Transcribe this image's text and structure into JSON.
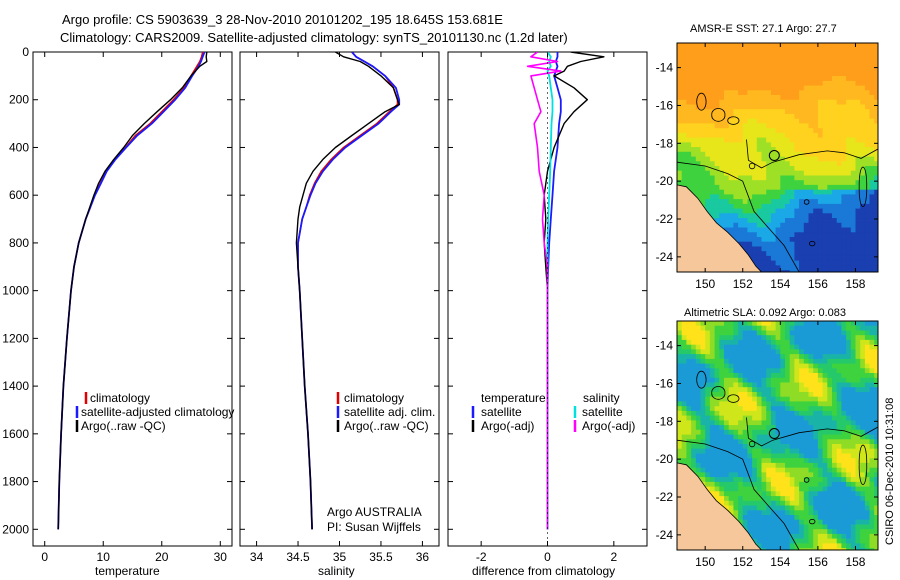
{
  "header": {
    "line1": "Argo profile: CS 5903639_3 28-Nov-2010 20101202_195 18.645S 153.681E",
    "line2": "Climatology: CARS2009. Satellite-adjusted climatology: synTS_20101130.nc (1.2d later)"
  },
  "colors": {
    "climatology": "#e00000",
    "satellite": "#1a1aff",
    "argo": "#000000",
    "sal_satellite": "#00e0e0",
    "sal_argo": "#ff00ff",
    "land": "#f6c79a"
  },
  "chart_data": [
    {
      "type": "line",
      "id": "temperature",
      "xlabel": "temperature",
      "ylabel": "",
      "xlim": [
        -2,
        32
      ],
      "ylim": [
        2070,
        0
      ],
      "xticks": [
        0,
        10,
        20,
        30
      ],
      "yticks": [
        0,
        200,
        400,
        600,
        800,
        1000,
        1200,
        1400,
        1600,
        1800,
        2000
      ],
      "legend": [
        "climatology",
        "satellite-adjusted climatology",
        "Argo(..raw -QC)"
      ],
      "depth": [
        0,
        20,
        40,
        60,
        100,
        150,
        200,
        250,
        300,
        350,
        400,
        450,
        500,
        550,
        600,
        650,
        700,
        800,
        900,
        1000,
        1200,
        1400,
        1600,
        1800,
        2000
      ],
      "series": [
        {
          "name": "climatology",
          "values": [
            27.0,
            26.8,
            26.5,
            26.0,
            25.0,
            23.8,
            22.0,
            20.0,
            18.0,
            15.5,
            13.8,
            12.0,
            10.5,
            9.5,
            8.5,
            7.8,
            7.0,
            5.8,
            5.0,
            4.5,
            3.8,
            3.2,
            2.8,
            2.5,
            2.3
          ]
        },
        {
          "name": "satellite-adjusted climatology",
          "values": [
            27.3,
            27.0,
            26.7,
            26.3,
            25.2,
            24.0,
            22.3,
            20.3,
            18.3,
            15.8,
            13.9,
            12.1,
            10.6,
            9.6,
            8.6,
            7.8,
            7.0,
            5.8,
            5.0,
            4.5,
            3.8,
            3.2,
            2.8,
            2.5,
            2.3
          ]
        },
        {
          "name": "Argo(..raw -QC)",
          "values": [
            27.7,
            27.6,
            27.7,
            26.5,
            25.0,
            23.5,
            21.5,
            19.2,
            17.0,
            15.0,
            13.5,
            11.8,
            10.3,
            9.2,
            8.4,
            7.7,
            7.0,
            5.8,
            5.0,
            4.5,
            3.8,
            3.2,
            2.8,
            2.5,
            2.3
          ]
        }
      ]
    },
    {
      "type": "line",
      "id": "salinity",
      "xlabel": "salinity",
      "ylabel": "",
      "xlim": [
        33.8,
        36.2
      ],
      "ylim": [
        2070,
        0
      ],
      "xticks": [
        34,
        34.5,
        35,
        35.5,
        36
      ],
      "legend": [
        "climatology",
        "satellite adj. clim.",
        "Argo(..raw -QC)"
      ],
      "annotation": [
        "Argo AUSTRALIA",
        "PI: Susan Wijffels"
      ],
      "depth": [
        0,
        20,
        40,
        60,
        100,
        150,
        200,
        220,
        250,
        300,
        350,
        400,
        450,
        500,
        550,
        600,
        650,
        700,
        800,
        900,
        1000,
        1200,
        1400,
        1600,
        1800,
        2000
      ],
      "series": [
        {
          "name": "climatology",
          "values": [
            35.15,
            35.2,
            35.3,
            35.4,
            35.55,
            35.65,
            35.7,
            35.7,
            35.6,
            35.45,
            35.25,
            35.05,
            34.9,
            34.78,
            34.7,
            34.64,
            34.6,
            34.55,
            34.5,
            34.5,
            34.52,
            34.55,
            34.58,
            34.62,
            34.65,
            34.67
          ]
        },
        {
          "name": "satellite adj. clim.",
          "values": [
            35.15,
            35.2,
            35.3,
            35.4,
            35.55,
            35.68,
            35.72,
            35.72,
            35.62,
            35.47,
            35.27,
            35.07,
            34.92,
            34.8,
            34.71,
            34.65,
            34.6,
            34.55,
            34.5,
            34.5,
            34.52,
            34.55,
            34.58,
            34.62,
            34.65,
            34.67
          ]
        },
        {
          "name": "Argo(..raw -QC)",
          "values": [
            34.95,
            35.05,
            35.25,
            35.35,
            35.5,
            35.65,
            35.7,
            35.72,
            35.55,
            35.35,
            35.15,
            34.95,
            34.8,
            34.68,
            34.6,
            34.56,
            34.52,
            34.5,
            34.48,
            34.5,
            34.52,
            34.55,
            34.58,
            34.62,
            34.65,
            34.67
          ]
        }
      ]
    },
    {
      "type": "line",
      "id": "difference",
      "xlabel": "difference from climatology",
      "ylabel": "",
      "xlim": [
        -3,
        3
      ],
      "ylim": [
        2070,
        0
      ],
      "xticks": [
        -2,
        0,
        2
      ],
      "legend_temperature": [
        "temperature",
        "satellite",
        "Argo(-adj)"
      ],
      "legend_salinity": [
        "salinity",
        "satellite",
        "Argo(-adj)"
      ],
      "depth": [
        0,
        20,
        40,
        60,
        80,
        100,
        150,
        200,
        250,
        300,
        400,
        500,
        600,
        700,
        800,
        900,
        1000,
        1200,
        1400,
        1600,
        1800,
        2000
      ],
      "series": [
        {
          "name": "temperature satellite",
          "values": [
            0.3,
            0.3,
            0.25,
            0.3,
            0.25,
            0.2,
            0.3,
            0.4,
            0.4,
            0.35,
            0.3,
            0.2,
            0.15,
            0.1,
            0.05,
            0.02,
            0.0,
            0.0,
            0.0,
            0.0,
            0.0,
            0.0
          ]
        },
        {
          "name": "temperature Argo(-adj)",
          "values": [
            0.7,
            1.7,
            1.0,
            0.6,
            0.5,
            0.2,
            0.8,
            1.2,
            0.8,
            0.5,
            0.2,
            0.0,
            -0.1,
            -0.05,
            -0.1,
            -0.05,
            0.0,
            0.0,
            0.0,
            0.0,
            0.0,
            0.0
          ]
        },
        {
          "name": "salinity satellite",
          "values": [
            0.0,
            0.1,
            0.05,
            0.1,
            0.0,
            0.05,
            0.1,
            0.15,
            0.15,
            0.12,
            0.1,
            0.08,
            0.05,
            0.02,
            0.0,
            0.0,
            0.0,
            0.0,
            0.0,
            0.0,
            0.0,
            0.0
          ]
        },
        {
          "name": "salinity Argo(-adj)",
          "values": [
            -0.3,
            -0.5,
            0.3,
            -0.6,
            0.4,
            -0.5,
            -0.4,
            -0.3,
            -0.2,
            -0.4,
            -0.3,
            -0.25,
            -0.1,
            -0.15,
            -0.1,
            0.0,
            0.0,
            0.0,
            0.0,
            0.0,
            0.0,
            0.0
          ]
        }
      ]
    },
    {
      "type": "heatmap",
      "id": "sst-map",
      "title": "AMSR-E SST: 27.1 Argo: 27.7",
      "xlim": [
        148.5,
        159.2
      ],
      "ylim": [
        -24.8,
        -12.7
      ],
      "xticks": [
        150,
        152,
        154,
        156,
        158
      ],
      "yticks": [
        -14,
        -16,
        -18,
        -20,
        -22,
        -24
      ],
      "marker": {
        "lon": 153.681,
        "lat": -18.645
      }
    },
    {
      "type": "heatmap",
      "id": "sla-map",
      "title": "Altimetric SLA: 0.092 Argo: 0.083",
      "xlim": [
        148.5,
        159.2
      ],
      "ylim": [
        -24.8,
        -12.7
      ],
      "xticks": [
        150,
        152,
        154,
        156,
        158
      ],
      "yticks": [
        -14,
        -16,
        -18,
        -20,
        -22,
        -24
      ],
      "marker": {
        "lon": 153.681,
        "lat": -18.645
      }
    }
  ],
  "footer": {
    "stamp": "CSIRO 06-Dec-2010 10:31:08"
  }
}
